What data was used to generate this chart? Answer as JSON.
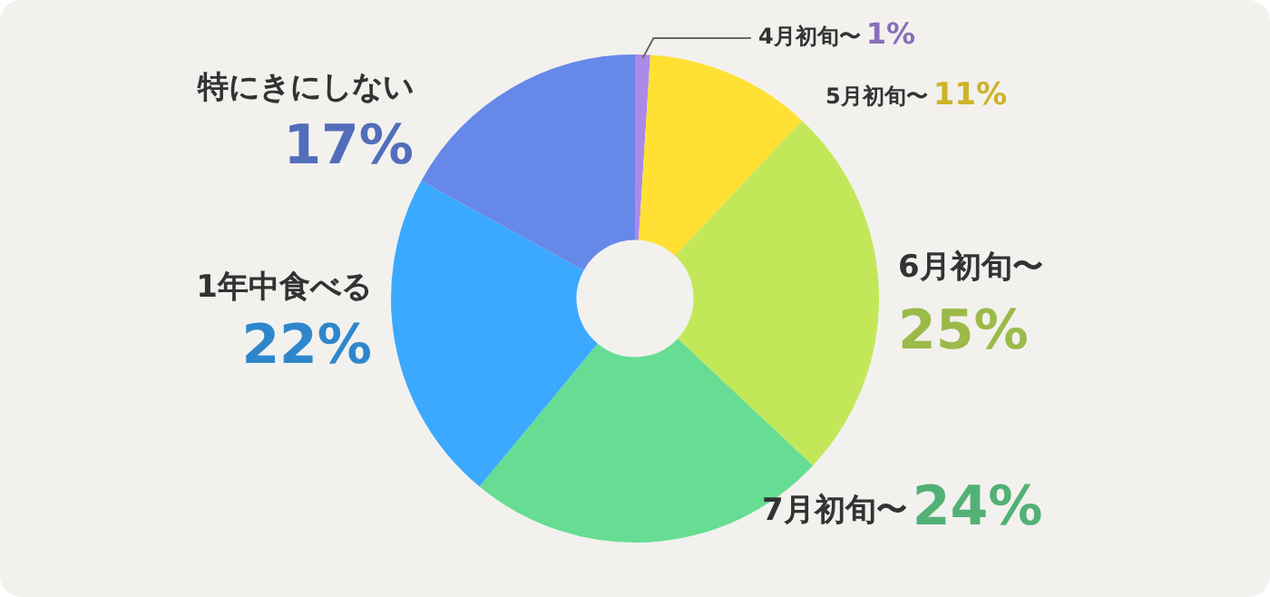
{
  "chart_data": {
    "type": "donut",
    "categories": [
      "4月初旬〜",
      "5月初旬〜",
      "6月初旬〜",
      "7月初旬〜",
      "1年中食べる",
      "特にきにしない"
    ],
    "values": [
      1,
      11,
      25,
      24,
      22,
      17
    ],
    "value_labels": [
      "1%",
      "11%",
      "25%",
      "24%",
      "22%",
      "17%"
    ],
    "colors": [
      "#a98ae8",
      "#ffe033",
      "#c2e85a",
      "#66dd92",
      "#3aa9ff",
      "#6688e8"
    ],
    "legend": false
  }
}
